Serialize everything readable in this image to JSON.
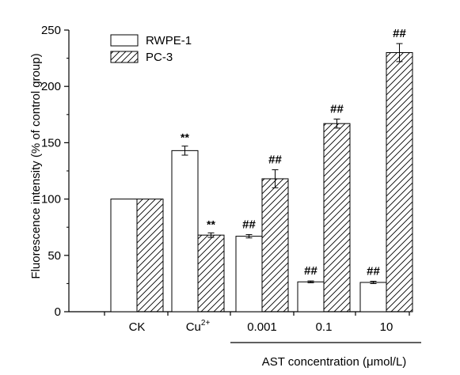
{
  "chart_data": {
    "type": "bar",
    "title": "",
    "ylabel": "Fluorescence intensity (% of control group)",
    "xlabel": "AST concentration (μmol/L)",
    "categories": [
      {
        "label": "CK",
        "sup": ""
      },
      {
        "label": "Cu",
        "sup": "2+"
      },
      {
        "label": "0.001",
        "sup": ""
      },
      {
        "label": "0.1",
        "sup": ""
      },
      {
        "label": "10",
        "sup": ""
      }
    ],
    "series": [
      {
        "name": "RWPE-1",
        "pattern": "empty",
        "values": [
          100,
          143,
          67,
          26.5,
          26
        ],
        "errors": [
          0,
          4,
          1.5,
          0.8,
          1
        ],
        "annotations": [
          "",
          "**",
          "##",
          "##",
          "##"
        ]
      },
      {
        "name": "PC-3",
        "pattern": "hatched",
        "values": [
          100,
          68,
          118,
          167,
          230
        ],
        "errors": [
          0,
          2,
          8,
          4,
          8
        ],
        "annotations": [
          "",
          "**",
          "##",
          "##",
          "##"
        ]
      }
    ],
    "ylim": [
      0,
      250
    ],
    "yticks": [
      0,
      50,
      100,
      150,
      200,
      250
    ],
    "grid": false,
    "legend": "top-left",
    "colors": {
      "axis": "#000000",
      "bar_fill": "#ffffff",
      "bar_stroke": "#000000"
    }
  }
}
